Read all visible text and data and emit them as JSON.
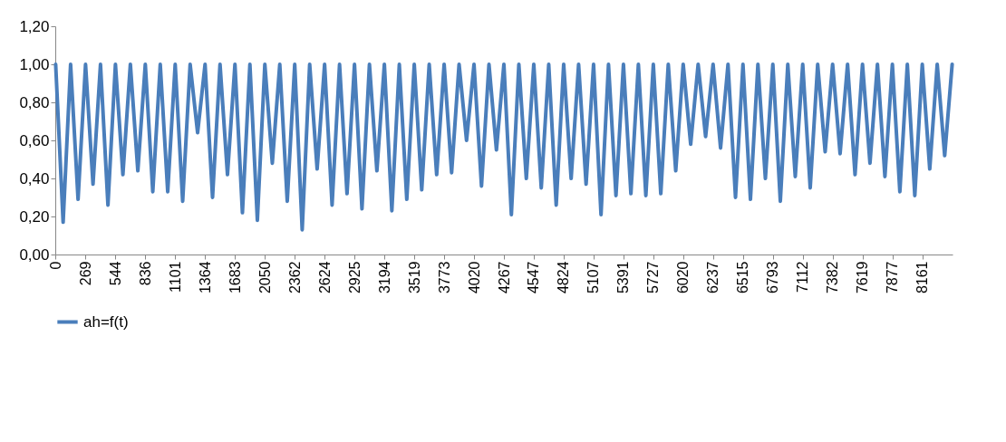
{
  "chart_data": {
    "type": "line",
    "categories": [
      "0",
      null,
      null,
      null,
      "269",
      null,
      null,
      null,
      "544",
      null,
      null,
      null,
      "836",
      null,
      null,
      null,
      "1101",
      null,
      null,
      null,
      "1364",
      null,
      null,
      null,
      "1683",
      null,
      null,
      null,
      "2050",
      null,
      null,
      null,
      "2362",
      null,
      null,
      null,
      "2624",
      null,
      null,
      null,
      "2925",
      null,
      null,
      null,
      "3194",
      null,
      null,
      null,
      "3519",
      null,
      null,
      null,
      "3773",
      null,
      null,
      null,
      "4020",
      null,
      null,
      null,
      "4267",
      null,
      null,
      null,
      "4547",
      null,
      null,
      null,
      "4824",
      null,
      null,
      null,
      "5107",
      null,
      null,
      null,
      "5391",
      null,
      null,
      null,
      "5727",
      null,
      null,
      null,
      "6020",
      null,
      null,
      null,
      "6237",
      null,
      null,
      null,
      "6515",
      null,
      null,
      null,
      "6793",
      null,
      null,
      null,
      "7112",
      null,
      null,
      null,
      "7382",
      null,
      null,
      null,
      "7619",
      null,
      null,
      null,
      "7877",
      null,
      null,
      null,
      "8161",
      null,
      null,
      null,
      null
    ],
    "series": [
      {
        "name": "ah=f(t)",
        "color": "#4a7ebb",
        "values": [
          1.0,
          0.17,
          1.0,
          0.29,
          1.0,
          0.37,
          1.0,
          0.26,
          1.0,
          0.42,
          1.0,
          0.44,
          1.0,
          0.33,
          1.0,
          0.33,
          1.0,
          0.28,
          1.0,
          0.64,
          1.0,
          0.3,
          1.0,
          0.42,
          1.0,
          0.22,
          1.0,
          0.18,
          1.0,
          0.48,
          1.0,
          0.28,
          1.0,
          0.13,
          1.0,
          0.45,
          1.0,
          0.26,
          1.0,
          0.32,
          1.0,
          0.24,
          1.0,
          0.44,
          1.0,
          0.23,
          1.0,
          0.29,
          1.0,
          0.34,
          1.0,
          0.42,
          1.0,
          0.43,
          1.0,
          0.6,
          1.0,
          0.36,
          1.0,
          0.55,
          1.0,
          0.21,
          1.0,
          0.4,
          1.0,
          0.35,
          1.0,
          0.26,
          1.0,
          0.4,
          1.0,
          0.37,
          1.0,
          0.21,
          1.0,
          0.31,
          1.0,
          0.32,
          1.0,
          0.31,
          1.0,
          0.32,
          1.0,
          0.44,
          1.0,
          0.58,
          1.0,
          0.62,
          1.0,
          0.56,
          1.0,
          0.3,
          1.0,
          0.29,
          1.0,
          0.4,
          1.0,
          0.28,
          1.0,
          0.41,
          1.0,
          0.35,
          1.0,
          0.54,
          1.0,
          0.53,
          1.0,
          0.42,
          1.0,
          0.48,
          1.0,
          0.41,
          1.0,
          0.33,
          1.0,
          0.31,
          1.0,
          0.45,
          1.0,
          0.52,
          1.0
        ]
      }
    ],
    "ylim": [
      0,
      1.2
    ],
    "yticks": [
      {
        "value": 0,
        "label": "0,00"
      },
      {
        "value": 0.2,
        "label": "0,20"
      },
      {
        "value": 0.4,
        "label": "0,40"
      },
      {
        "value": 0.6,
        "label": "0,60"
      },
      {
        "value": 0.8,
        "label": "0,80"
      },
      {
        "value": 1.0,
        "label": "1,00"
      },
      {
        "value": 1.2,
        "label": "1,20"
      }
    ],
    "grid": false,
    "legend": "bottom",
    "line_style": "solid",
    "marker": "none"
  }
}
